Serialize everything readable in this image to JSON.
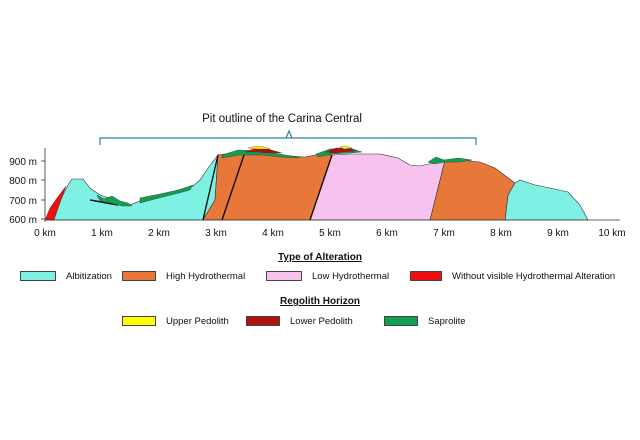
{
  "bracket_label": "Pit outline of the Carina Central",
  "y_ticks": [
    "900 m",
    "800 m",
    "700 m",
    "600 m"
  ],
  "x_ticks": [
    "0 km",
    "1 km",
    "2 km",
    "3 km",
    "4 km",
    "5 km",
    "6 km",
    "7 km",
    "8 km",
    "9 km",
    "10 km"
  ],
  "alteration": {
    "title": "Type of Alteration",
    "items": [
      {
        "label": "Albitization",
        "color": "#7ff0e4"
      },
      {
        "label": "High Hydrothermal",
        "color": "#e8773a"
      },
      {
        "label": "Low Hydrothermal",
        "color": "#f7c2ee"
      },
      {
        "label": "Without visible Hydrothermal Alteration",
        "color": "#ee0f0f"
      }
    ]
  },
  "regolith": {
    "title": "Regolith Horizon",
    "items": [
      {
        "label": "Upper Pedolith",
        "color": "#ffff00"
      },
      {
        "label": "Lower Pedolith",
        "color": "#b01010"
      },
      {
        "label": "Saprolite",
        "color": "#10a050"
      }
    ]
  }
}
